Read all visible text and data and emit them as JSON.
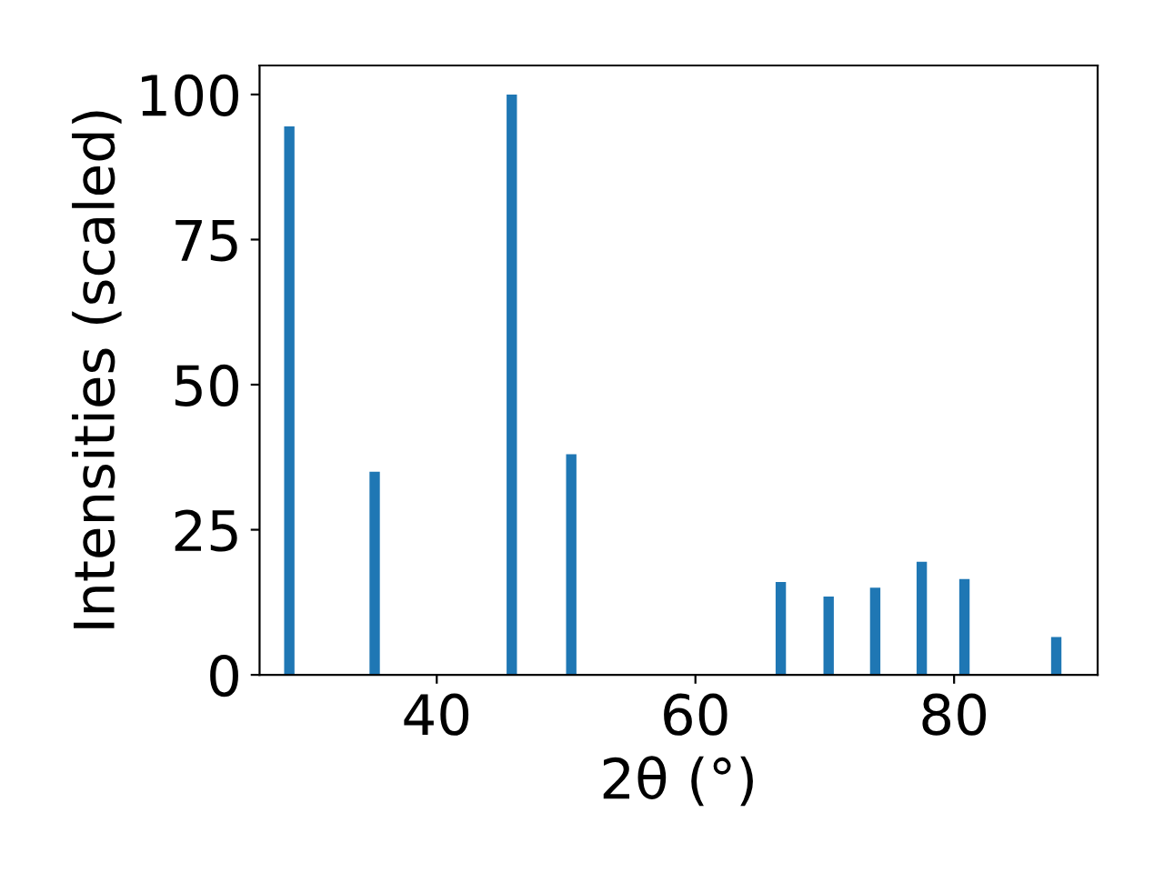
{
  "chart_data": {
    "type": "bar",
    "xlabel": "2θ (°)",
    "ylabel": "Intensities (scaled)",
    "x": [
      28.6,
      35.2,
      45.8,
      50.4,
      66.6,
      70.3,
      73.9,
      77.5,
      80.8,
      87.9
    ],
    "values": [
      94.5,
      35,
      100,
      38,
      16,
      13.5,
      15,
      19.5,
      16.5,
      6.5
    ],
    "color": "#1f77b4",
    "xlim": [
      26.3,
      91.1
    ],
    "xticks": [
      40,
      60,
      80
    ],
    "ylim": [
      0,
      105
    ],
    "yticks": [
      0,
      25,
      50,
      75,
      100
    ],
    "grid": false,
    "legend": false
  }
}
